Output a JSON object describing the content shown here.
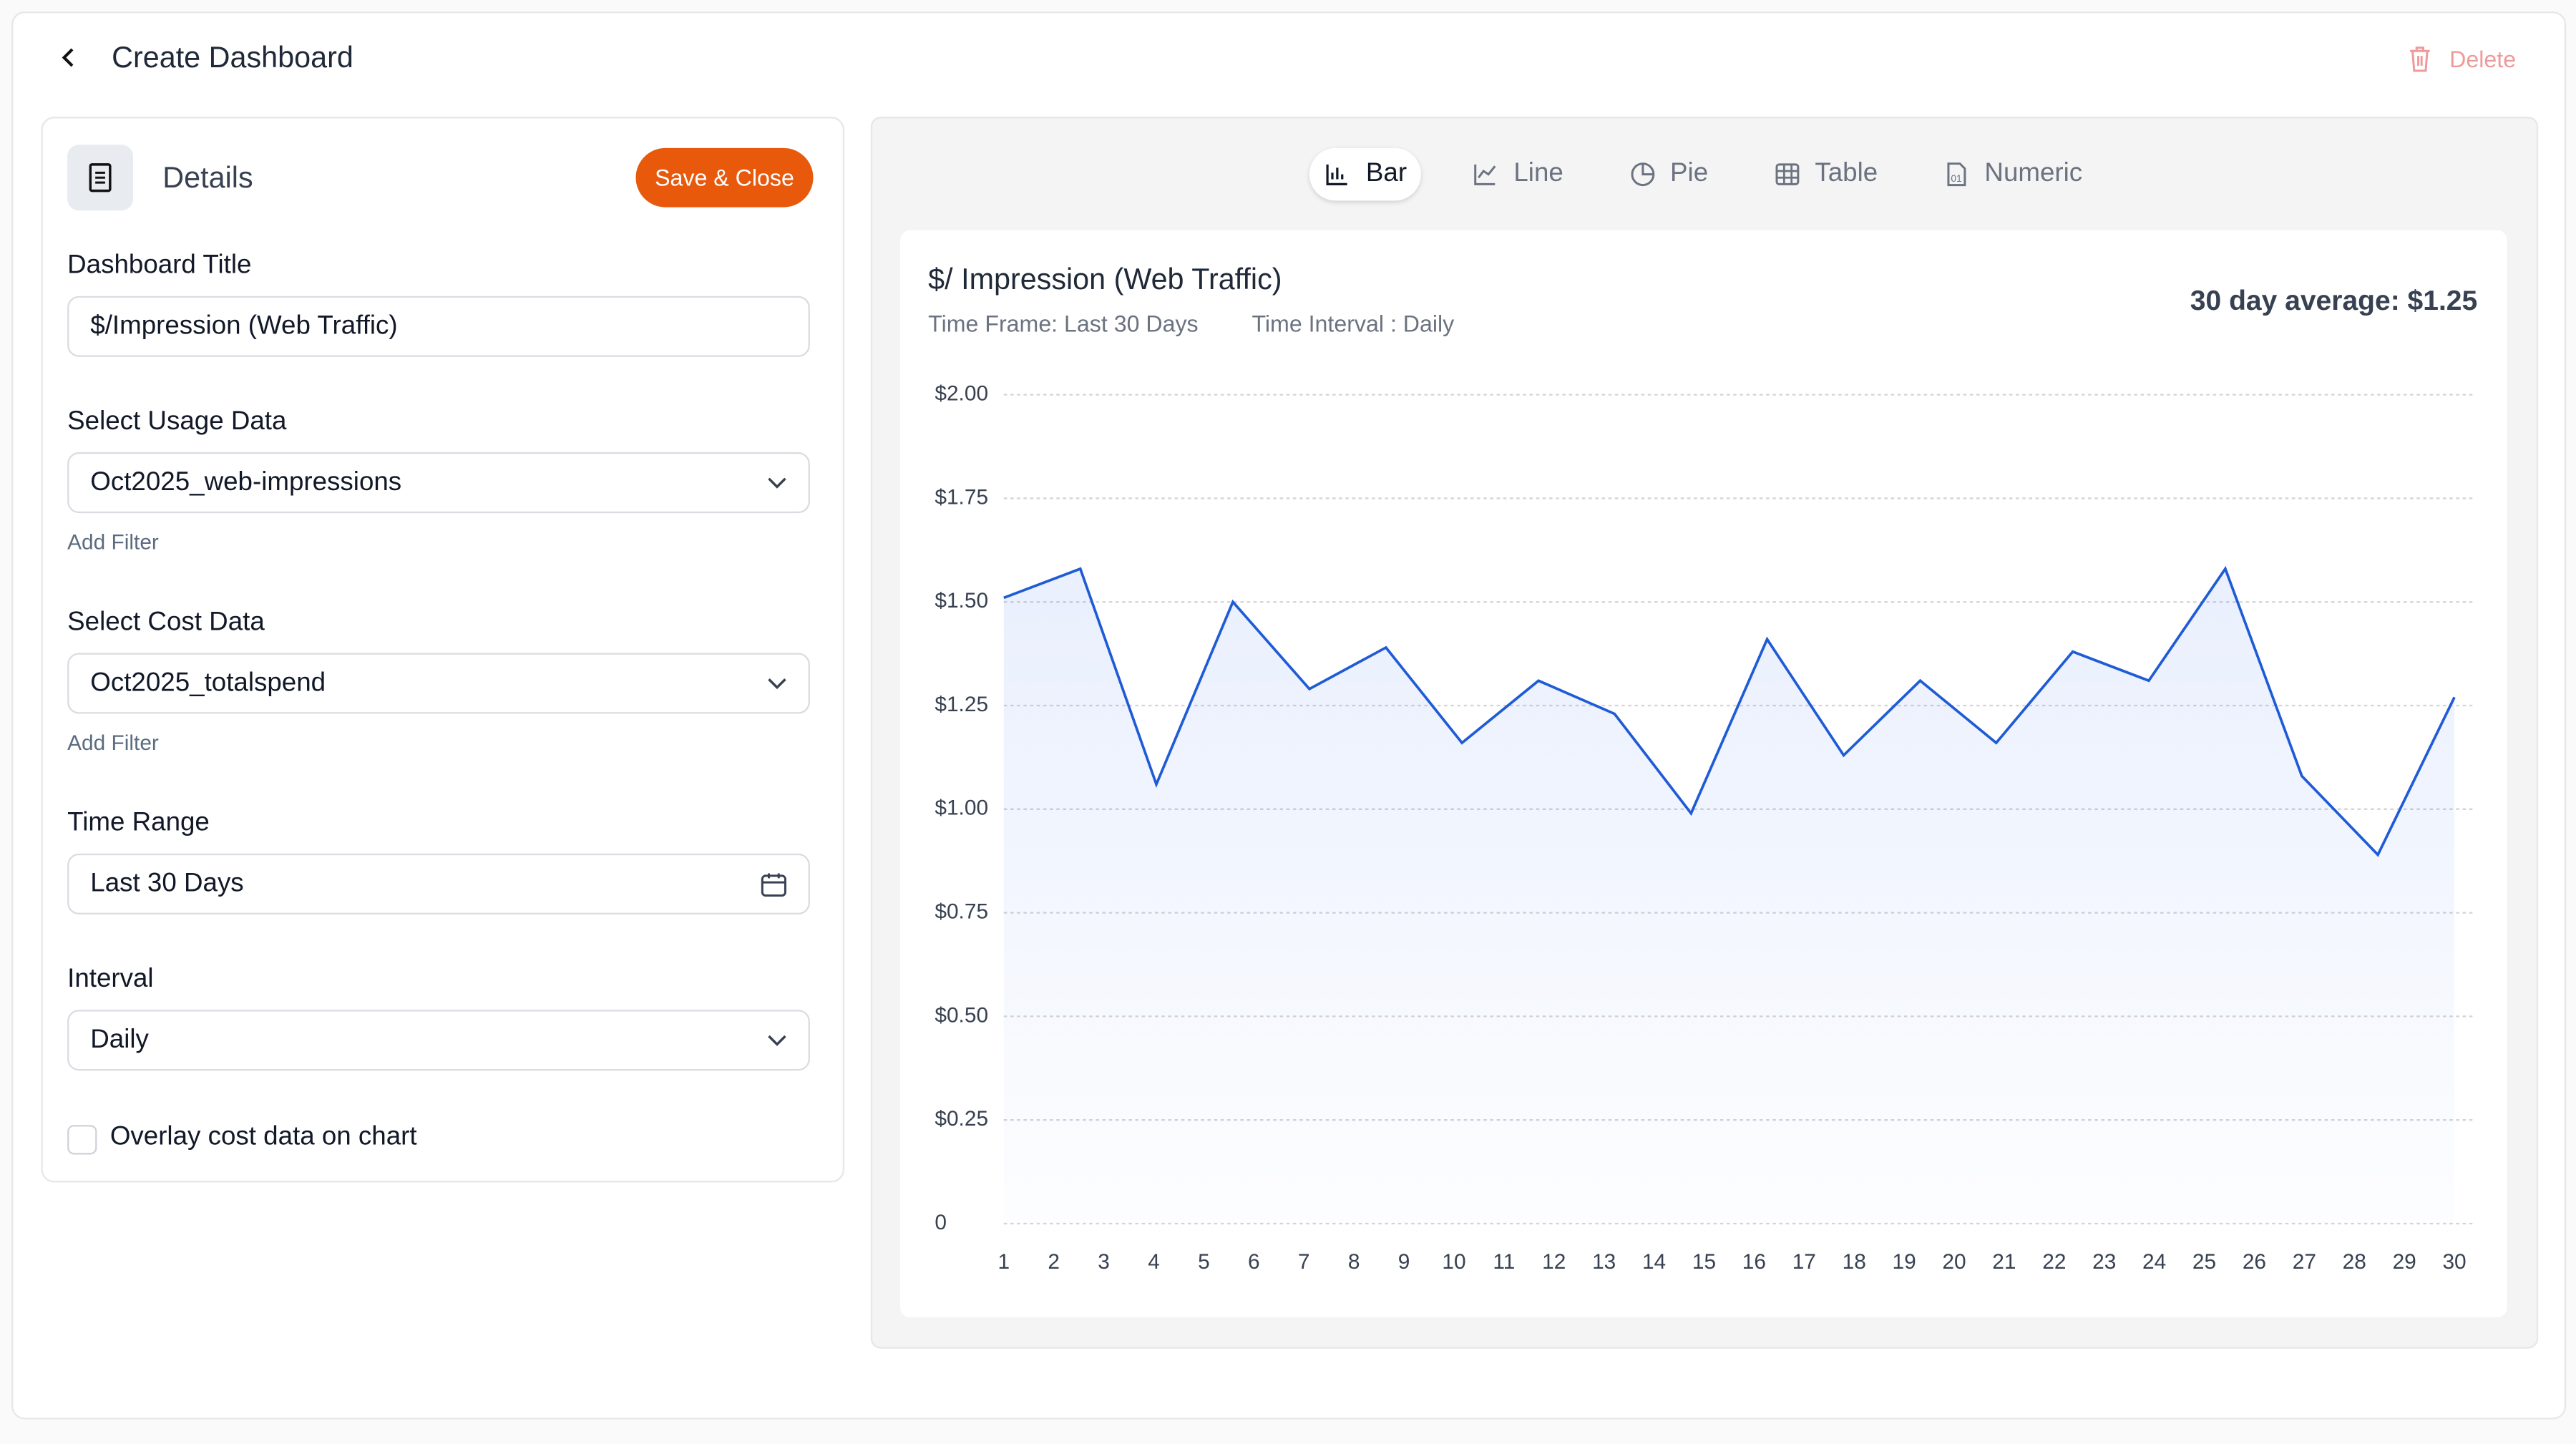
{
  "header": {
    "title": "Create Dashboard",
    "delete": "Delete"
  },
  "details": {
    "title": "Details",
    "save": "Save & Close",
    "fields": [
      {
        "label": "Dashboard Title",
        "value": "$/Impression (Web Traffic)"
      },
      {
        "label": "Select Usage Data",
        "value": "Oct2025_web-impressions",
        "filter": "Add Filter"
      },
      {
        "label": "Select Cost Data",
        "value": "Oct2025_totalspend",
        "filter": "Add Filter"
      },
      {
        "label": "Time Range",
        "value": "Last 30 Days"
      },
      {
        "label": "Interval",
        "value": "Daily"
      }
    ],
    "overlay": "Overlay cost data on chart"
  },
  "tabs": {
    "items": [
      "Bar",
      "Line",
      "Pie",
      "Table",
      "Numeric"
    ],
    "active": 0
  },
  "chart_data": {
    "type": "line",
    "title": "$/ Impression (Web Traffic)",
    "subtitle": [
      "Time Frame: Last 30 Days",
      "Time Interval : Daily"
    ],
    "annotation": "30 day average: $1.25",
    "x": [
      1,
      2.53,
      4.05,
      5.58,
      7.11,
      8.64,
      10.16,
      11.69,
      13.21,
      14.74,
      16.26,
      17.79,
      19.32,
      20.84,
      22.37,
      23.89,
      25.42,
      26.95,
      28.47,
      30
    ],
    "values": [
      1.51,
      1.58,
      1.06,
      1.5,
      1.29,
      1.39,
      1.16,
      1.31,
      1.23,
      0.99,
      1.41,
      1.13,
      1.31,
      1.16,
      1.38,
      1.31,
      1.58,
      1.08,
      0.89,
      1.27
    ],
    "color": "#1f5bd6",
    "area": true,
    "grid": true,
    "xlim": [
      1,
      30
    ],
    "xticks": [
      1,
      2,
      3,
      4,
      5,
      6,
      7,
      8,
      9,
      10,
      11,
      12,
      13,
      14,
      15,
      16,
      17,
      18,
      19,
      20,
      21,
      22,
      23,
      24,
      25,
      26,
      27,
      28,
      29,
      30
    ],
    "ylim": [
      0,
      2
    ],
    "yticks": [
      0,
      {
        "value": 0.25,
        "label": "$0.25"
      },
      {
        "value": 0.5,
        "label": "$0.50"
      },
      {
        "value": 0.75,
        "label": "$0.75"
      },
      {
        "value": 1,
        "label": "$1.00"
      },
      {
        "value": 1.25,
        "label": "$1.25"
      },
      {
        "value": 1.5,
        "label": "$1.50"
      },
      {
        "value": 1.75,
        "label": "$1.75"
      },
      {
        "value": 2,
        "label": "$2.00"
      }
    ]
  }
}
